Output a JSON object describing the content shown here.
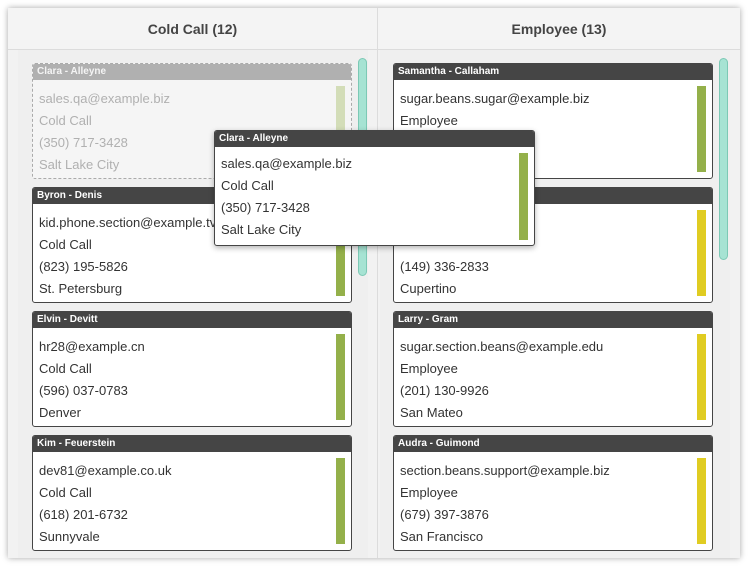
{
  "columns": [
    {
      "title": "Cold Call (12)",
      "cards": [
        {
          "name": "Byron - Denis",
          "email": "kid.phone.section@example.tv",
          "status": "Cold Call",
          "phone": "(823) 195-5826",
          "city": "St. Petersburg"
        },
        {
          "name": "Elvin - Devitt",
          "email": "hr28@example.cn",
          "status": "Cold Call",
          "phone": "(596) 037-0783",
          "city": "Denver"
        },
        {
          "name": "Kim - Feuerstein",
          "email": "dev81@example.co.uk",
          "status": "Cold Call",
          "phone": "(618) 201-6732",
          "city": "Sunnyvale"
        }
      ]
    },
    {
      "title": "Employee (13)",
      "cards": [
        {
          "name": "Samantha - Callaham",
          "email": "sugar.beans.sugar@example.biz",
          "status": "Employee",
          "phone": "",
          "city": ""
        },
        {
          "name": "",
          "email": "",
          "status": "",
          "phone": "(149) 336-2833",
          "city": "Cupertino"
        },
        {
          "name": "Larry - Gram",
          "email": "sugar.section.beans@example.edu",
          "status": "Employee",
          "phone": "(201) 130-9926",
          "city": "San Mateo"
        },
        {
          "name": "Audra - Guimond",
          "email": "section.beans.support@example.biz",
          "status": "Employee",
          "phone": "(679) 397-3876",
          "city": "San Francisco"
        }
      ]
    }
  ],
  "placeholder": {
    "name": "Clara - Alleyne",
    "email": "sales.qa@example.biz",
    "status": "Cold Call",
    "phone": "(350) 717-3428",
    "city": "Salt Lake City"
  },
  "dragging": {
    "name": "Clara - Alleyne",
    "email": "sales.qa@example.biz",
    "status": "Cold Call",
    "phone": "(350) 717-3428",
    "city": "Salt Lake City"
  },
  "colors": {
    "cold_call_bar": "#94b04a",
    "employee_bar": "#e0cc22",
    "placeholder_bar": "#d3ddb8",
    "card_header": "#454545",
    "scrollbar": "#a6e3d3"
  }
}
